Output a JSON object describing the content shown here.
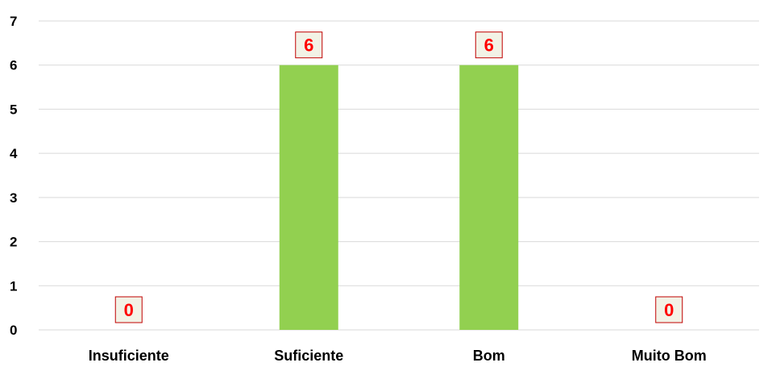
{
  "chart_data": {
    "type": "bar",
    "categories": [
      "Insuficiente",
      "Suficiente",
      "Bom",
      "Muito Bom"
    ],
    "values": [
      0,
      6,
      6,
      0
    ],
    "data_labels": [
      "0",
      "6",
      "6",
      "0"
    ],
    "title": "",
    "xlabel": "",
    "ylabel": "",
    "ylim": [
      0,
      7
    ],
    "yticks": [
      "0",
      "1",
      "2",
      "3",
      "4",
      "5",
      "6",
      "7"
    ],
    "grid": true,
    "legend": "none"
  },
  "colors": {
    "bar": "#92d050",
    "gridline": "#d9d9d9",
    "axis_text": "#000000",
    "label_text": "#ff0000",
    "label_fill": "#f2f2e6",
    "label_border": "#c00000"
  }
}
